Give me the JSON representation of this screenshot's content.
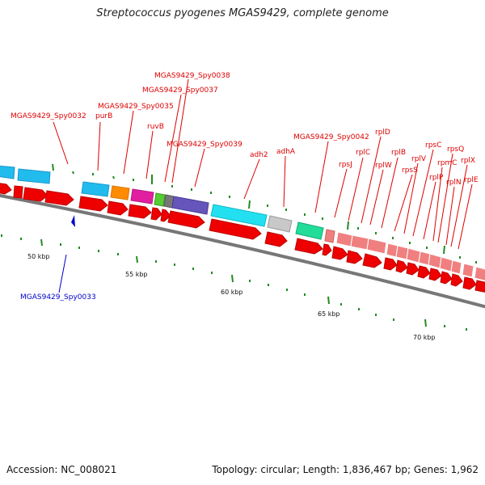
{
  "title": "Streptococcus pyogenes MGAS9429, complete genome",
  "footer": {
    "accession": "Accession: NC_008021",
    "summary": "Topology: circular; Length: 1,836,467 bp; Genes: 1,962"
  },
  "colors": {
    "label_forward": "#dd0000",
    "label_reverse": "#0000cc",
    "arrow_red": "#ee0000",
    "arrow_pink": "#f08080",
    "backbone": "#777777",
    "tick": "#228b22"
  },
  "scale_labels": [
    "50 kbp",
    "55 kbp",
    "60 kbp",
    "65 kbp",
    "70 kbp"
  ],
  "gene_labels": [
    "MGAS9429_Spy0032",
    "purB",
    "MGAS9429_Spy0035",
    "ruvB",
    "MGAS9429_Spy0037",
    "MGAS9429_Spy0038",
    "MGAS9429_Spy0039",
    "adh2",
    "adhA",
    "MGAS9429_Spy0042",
    "rpsJ",
    "rplC",
    "rplD",
    "rplW",
    "rplB",
    "rpsS",
    "rplV",
    "rpsC",
    "rplP",
    "rpmC",
    "rpsQ",
    "rplN",
    "rplX",
    "rplE",
    "MGAS9429_Spy0033"
  ]
}
